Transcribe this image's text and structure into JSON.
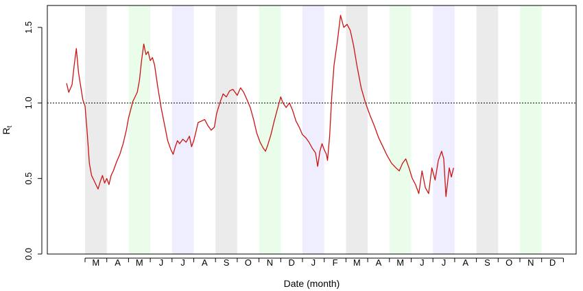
{
  "chart_data": {
    "type": "line",
    "title": "",
    "xlabel": "Date (month)",
    "ylabel": "R",
    "ylabel_subscript": "t",
    "ylim": [
      0.0,
      1.65
    ],
    "y_ticks": [
      "0.0",
      "0.5",
      "1.0",
      "1.5"
    ],
    "reference_line": {
      "y": 1.0,
      "style": "dotted"
    },
    "x_month_labels": [
      "M",
      "A",
      "M",
      "J",
      "J",
      "A",
      "S",
      "O",
      "N",
      "D",
      "J",
      "F",
      "M",
      "A",
      "M",
      "J",
      "J",
      "A",
      "S",
      "O",
      "N",
      "D"
    ],
    "month_shading": [
      {
        "month_index": 0,
        "label": "M",
        "color": "#ebebeb"
      },
      {
        "month_index": 2,
        "label": "M",
        "color": "#eafcea"
      },
      {
        "month_index": 4,
        "label": "J",
        "color": "#eeeefe"
      },
      {
        "month_index": 6,
        "label": "S",
        "color": "#ebebeb"
      },
      {
        "month_index": 8,
        "label": "N",
        "color": "#eafcea"
      },
      {
        "month_index": 10,
        "label": "J",
        "color": "#eeeefe"
      },
      {
        "month_index": 12,
        "label": "M",
        "color": "#ebebeb"
      },
      {
        "month_index": 14,
        "label": "M",
        "color": "#eafcea"
      },
      {
        "month_index": 16,
        "label": "J",
        "color": "#eeeefe"
      },
      {
        "month_index": 18,
        "label": "S",
        "color": "#ebebeb"
      },
      {
        "month_index": 20,
        "label": "N",
        "color": "#eafcea"
      }
    ],
    "series": [
      {
        "color": "#cc1111",
        "points": [
          [
            -0.85,
            1.13
          ],
          [
            -0.75,
            1.07
          ],
          [
            -0.6,
            1.12
          ],
          [
            -0.5,
            1.25
          ],
          [
            -0.4,
            1.36
          ],
          [
            -0.3,
            1.2
          ],
          [
            -0.1,
            1.02
          ],
          [
            0.0,
            0.98
          ],
          [
            0.1,
            0.8
          ],
          [
            0.2,
            0.6
          ],
          [
            0.3,
            0.52
          ],
          [
            0.4,
            0.49
          ],
          [
            0.5,
            0.46
          ],
          [
            0.6,
            0.43
          ],
          [
            0.7,
            0.48
          ],
          [
            0.8,
            0.52
          ],
          [
            0.9,
            0.47
          ],
          [
            1.0,
            0.5
          ],
          [
            1.1,
            0.46
          ],
          [
            1.2,
            0.52
          ],
          [
            1.3,
            0.55
          ],
          [
            1.45,
            0.61
          ],
          [
            1.6,
            0.66
          ],
          [
            1.75,
            0.73
          ],
          [
            1.9,
            0.82
          ],
          [
            2.0,
            0.9
          ],
          [
            2.2,
            1.01
          ],
          [
            2.4,
            1.07
          ],
          [
            2.5,
            1.15
          ],
          [
            2.6,
            1.28
          ],
          [
            2.7,
            1.39
          ],
          [
            2.8,
            1.32
          ],
          [
            2.9,
            1.34
          ],
          [
            3.0,
            1.28
          ],
          [
            3.1,
            1.3
          ],
          [
            3.2,
            1.25
          ],
          [
            3.35,
            1.1
          ],
          [
            3.5,
            0.97
          ],
          [
            3.65,
            0.86
          ],
          [
            3.8,
            0.75
          ],
          [
            3.95,
            0.69
          ],
          [
            4.05,
            0.66
          ],
          [
            4.15,
            0.71
          ],
          [
            4.25,
            0.75
          ],
          [
            4.35,
            0.73
          ],
          [
            4.5,
            0.76
          ],
          [
            4.65,
            0.74
          ],
          [
            4.8,
            0.78
          ],
          [
            4.9,
            0.71
          ],
          [
            5.0,
            0.75
          ],
          [
            5.1,
            0.81
          ],
          [
            5.2,
            0.87
          ],
          [
            5.35,
            0.88
          ],
          [
            5.5,
            0.89
          ],
          [
            5.65,
            0.85
          ],
          [
            5.8,
            0.82
          ],
          [
            5.95,
            0.84
          ],
          [
            6.05,
            0.93
          ],
          [
            6.2,
            1.0
          ],
          [
            6.35,
            1.06
          ],
          [
            6.5,
            1.04
          ],
          [
            6.65,
            1.08
          ],
          [
            6.8,
            1.09
          ],
          [
            7.0,
            1.05
          ],
          [
            7.15,
            1.1
          ],
          [
            7.3,
            1.07
          ],
          [
            7.45,
            1.02
          ],
          [
            7.6,
            0.97
          ],
          [
            7.75,
            0.89
          ],
          [
            7.9,
            0.8
          ],
          [
            8.05,
            0.74
          ],
          [
            8.2,
            0.7
          ],
          [
            8.3,
            0.68
          ],
          [
            8.4,
            0.72
          ],
          [
            8.55,
            0.79
          ],
          [
            8.7,
            0.88
          ],
          [
            8.85,
            0.96
          ],
          [
            9.0,
            1.04
          ],
          [
            9.1,
            1.0
          ],
          [
            9.25,
            0.97
          ],
          [
            9.4,
            1.0
          ],
          [
            9.55,
            0.95
          ],
          [
            9.7,
            0.88
          ],
          [
            9.85,
            0.84
          ],
          [
            10.0,
            0.79
          ],
          [
            10.15,
            0.77
          ],
          [
            10.3,
            0.74
          ],
          [
            10.45,
            0.7
          ],
          [
            10.6,
            0.67
          ],
          [
            10.7,
            0.58
          ],
          [
            10.8,
            0.68
          ],
          [
            10.9,
            0.73
          ],
          [
            11.0,
            0.69
          ],
          [
            11.1,
            0.66
          ],
          [
            11.15,
            0.62
          ],
          [
            11.25,
            0.78
          ],
          [
            11.35,
            1.05
          ],
          [
            11.45,
            1.25
          ],
          [
            11.6,
            1.4
          ],
          [
            11.75,
            1.58
          ],
          [
            11.9,
            1.5
          ],
          [
            12.05,
            1.52
          ],
          [
            12.2,
            1.48
          ],
          [
            12.35,
            1.38
          ],
          [
            12.5,
            1.25
          ],
          [
            12.7,
            1.1
          ],
          [
            12.9,
            1.0
          ],
          [
            13.1,
            0.92
          ],
          [
            13.3,
            0.85
          ],
          [
            13.5,
            0.77
          ],
          [
            13.7,
            0.71
          ],
          [
            13.9,
            0.65
          ],
          [
            14.1,
            0.6
          ],
          [
            14.3,
            0.57
          ],
          [
            14.45,
            0.55
          ],
          [
            14.6,
            0.6
          ],
          [
            14.75,
            0.63
          ],
          [
            14.9,
            0.57
          ],
          [
            15.05,
            0.5
          ],
          [
            15.2,
            0.46
          ],
          [
            15.35,
            0.4
          ],
          [
            15.5,
            0.55
          ],
          [
            15.65,
            0.44
          ],
          [
            15.8,
            0.4
          ],
          [
            15.95,
            0.57
          ],
          [
            16.1,
            0.49
          ],
          [
            16.25,
            0.62
          ],
          [
            16.4,
            0.68
          ],
          [
            16.5,
            0.63
          ],
          [
            16.6,
            0.38
          ],
          [
            16.75,
            0.57
          ],
          [
            16.85,
            0.51
          ],
          [
            16.95,
            0.57
          ]
        ]
      }
    ]
  }
}
